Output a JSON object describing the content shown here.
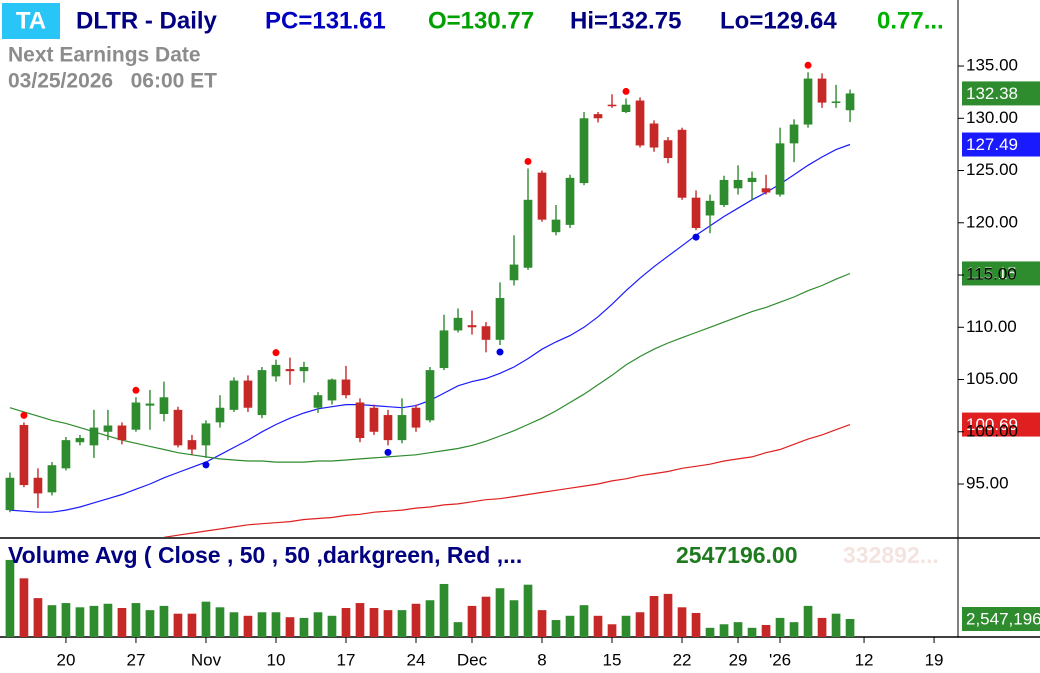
{
  "chart_data": {
    "type": "candlestick",
    "badge": "TA",
    "symbol": "DLTR - Daily",
    "prev_close_text": "PC=131.61",
    "open_text": "O=130.77",
    "high_text": "Hi=132.75",
    "low_text": "Lo=129.64",
    "change_text": "0.77...",
    "earnings_title": "Next Earnings Date",
    "earnings_date": "03/25/2026   06:00 ET",
    "xlim": [
      -0.71,
      67.71
    ],
    "xticks": [
      {
        "value": 4,
        "label": "20"
      },
      {
        "value": 9,
        "label": "27"
      },
      {
        "value": 14,
        "label": "Nov"
      },
      {
        "value": 19,
        "label": "10"
      },
      {
        "value": 24,
        "label": "17"
      },
      {
        "value": 29,
        "label": "24"
      },
      {
        "value": 33,
        "label": "Dec"
      },
      {
        "value": 38,
        "label": "8"
      },
      {
        "value": 43,
        "label": "15"
      },
      {
        "value": 48,
        "label": "22"
      },
      {
        "value": 52,
        "label": "29"
      },
      {
        "value": 55,
        "label": "'26"
      },
      {
        "value": 61,
        "label": "12"
      },
      {
        "value": 66,
        "label": "19"
      }
    ],
    "ylim": [
      89.93,
      141.32
    ],
    "yticks": [
      {
        "value": 95,
        "label": "95.00"
      },
      {
        "value": 100,
        "label": "100.00"
      },
      {
        "value": 105,
        "label": "105.00"
      },
      {
        "value": 110,
        "label": "110.00"
      },
      {
        "value": 115,
        "label": "115.00"
      },
      {
        "value": 120,
        "label": "120.00"
      },
      {
        "value": 125,
        "label": "125.00"
      },
      {
        "value": 130,
        "label": "130.00"
      },
      {
        "value": 135,
        "label": "135.00"
      }
    ],
    "up_color": "#2e8b2e",
    "down_color": "#c62828",
    "open": [
      92.5,
      100.65,
      95.6,
      94.2,
      96.5,
      99.0,
      98.7,
      100.0,
      100.6,
      100.2,
      102.5,
      101.7,
      102.1,
      99.2,
      98.7,
      100.9,
      102.1,
      104.9,
      101.6,
      105.3,
      106.0,
      105.8,
      102.3,
      103.0,
      105.0,
      102.8,
      102.3,
      101.6,
      99.2,
      102.3,
      101.1,
      106.1,
      109.7,
      110.2,
      110.1,
      108.8,
      114.5,
      115.7,
      124.8,
      119.1,
      119.8,
      123.8,
      130.4,
      131.3,
      130.6,
      131.7,
      129.5,
      127.9,
      128.9,
      122.4,
      120.7,
      121.7,
      123.3,
      123.9,
      123.3,
      122.7,
      127.6,
      129.4,
      133.8,
      131.5,
      130.77
    ],
    "high": [
      96.1,
      100.9,
      96.5,
      97.1,
      99.5,
      99.7,
      102.1,
      102.1,
      100.9,
      103.3,
      104.0,
      104.8,
      102.4,
      99.7,
      101.1,
      103.5,
      105.2,
      105.4,
      106.2,
      106.9,
      107.1,
      106.7,
      103.8,
      105.1,
      106.3,
      103.2,
      102.6,
      102.1,
      103.2,
      102.6,
      106.2,
      111.2,
      111.8,
      111.6,
      110.5,
      114.3,
      118.8,
      125.2,
      125.0,
      121.7,
      124.6,
      130.6,
      130.6,
      132.3,
      131.9,
      132.0,
      129.8,
      128.2,
      129.1,
      123.1,
      122.7,
      124.5,
      125.5,
      124.9,
      124.6,
      129.1,
      129.9,
      134.4,
      134.3,
      133.2,
      132.75
    ],
    "low": [
      92.3,
      94.7,
      92.7,
      93.9,
      96.3,
      98.7,
      97.5,
      99.2,
      98.8,
      100.0,
      100.2,
      101.0,
      98.5,
      97.8,
      97.5,
      100.4,
      101.9,
      101.9,
      101.3,
      104.8,
      104.5,
      104.7,
      101.8,
      102.6,
      103.2,
      99.0,
      99.7,
      98.7,
      98.9,
      100.0,
      100.9,
      105.9,
      109.5,
      109.3,
      107.6,
      108.3,
      114.0,
      115.5,
      120.1,
      118.8,
      119.5,
      123.6,
      129.6,
      131.0,
      130.5,
      127.2,
      126.8,
      125.7,
      122.2,
      119.3,
      119.0,
      121.5,
      122.7,
      122.2,
      122.7,
      122.5,
      125.8,
      129.1,
      131.0,
      131.0,
      129.64
    ],
    "close": [
      95.6,
      94.9,
      94.1,
      96.8,
      99.2,
      99.4,
      100.4,
      100.6,
      99.2,
      102.8,
      102.7,
      103.3,
      98.7,
      98.3,
      100.8,
      102.3,
      104.9,
      102.3,
      105.9,
      106.4,
      105.8,
      106.2,
      103.5,
      105.0,
      103.5,
      99.4,
      100.0,
      99.2,
      101.6,
      100.4,
      105.9,
      109.7,
      110.9,
      110.0,
      108.8,
      112.8,
      116.0,
      122.2,
      120.3,
      120.3,
      124.3,
      130.0,
      130.0,
      131.2,
      131.3,
      127.4,
      127.2,
      126.2,
      122.4,
      119.5,
      122.1,
      124.1,
      124.1,
      124.3,
      122.9,
      127.6,
      129.4,
      133.8,
      131.5,
      131.61,
      132.38
    ],
    "last_label": "132.38",
    "last_label_color": "#2e8b2e",
    "swing_highs": [
      1,
      9,
      19,
      37,
      44,
      57
    ],
    "swing_lows": [
      14,
      27,
      35,
      49
    ],
    "swing_high_color": "#ff0000",
    "swing_low_color": "#0000e0",
    "overlays": [
      {
        "color": "#1a1aff",
        "last_label": "127.49",
        "values": [
          92.5,
          92.4,
          92.3,
          92.3,
          92.5,
          92.8,
          93.2,
          93.6,
          94.0,
          94.5,
          95.0,
          95.6,
          96.1,
          96.6,
          97.1,
          97.8,
          98.5,
          99.2,
          100.0,
          100.7,
          101.3,
          101.8,
          102.2,
          102.4,
          102.6,
          102.6,
          102.5,
          102.4,
          102.3,
          102.5,
          103.0,
          103.7,
          104.4,
          104.8,
          105.1,
          105.6,
          106.2,
          107.0,
          107.9,
          108.6,
          109.2,
          110.0,
          111.0,
          112.2,
          113.5,
          114.7,
          115.8,
          116.8,
          117.8,
          118.8,
          119.7,
          120.6,
          121.4,
          122.2,
          122.9,
          123.7,
          124.6,
          125.5,
          126.3,
          127.0,
          127.49
        ]
      },
      {
        "color": "#2e8b2e",
        "last_label": "115.15",
        "values": [
          102.3,
          101.9,
          101.5,
          101.1,
          100.8,
          100.4,
          100.0,
          99.6,
          99.2,
          98.9,
          98.6,
          98.3,
          98.0,
          97.8,
          97.6,
          97.4,
          97.3,
          97.2,
          97.2,
          97.1,
          97.1,
          97.1,
          97.2,
          97.2,
          97.3,
          97.4,
          97.5,
          97.6,
          97.7,
          97.8,
          98.0,
          98.2,
          98.4,
          98.7,
          99.1,
          99.6,
          100.1,
          100.7,
          101.3,
          102.0,
          102.8,
          103.6,
          104.5,
          105.4,
          106.4,
          107.2,
          107.9,
          108.5,
          109.0,
          109.5,
          110.0,
          110.5,
          111.0,
          111.5,
          111.9,
          112.4,
          112.9,
          113.5,
          114.0,
          114.6,
          115.15
        ]
      },
      {
        "color": "#e02020",
        "last_label": "100.69",
        "values": [
          null,
          null,
          null,
          null,
          null,
          null,
          null,
          null,
          null,
          null,
          null,
          89.9,
          90.1,
          90.3,
          90.5,
          90.7,
          90.9,
          91.1,
          91.2,
          91.3,
          91.4,
          91.6,
          91.7,
          91.8,
          92.0,
          92.1,
          92.3,
          92.4,
          92.5,
          92.7,
          92.8,
          93.0,
          93.1,
          93.3,
          93.5,
          93.6,
          93.8,
          94.0,
          94.2,
          94.4,
          94.6,
          94.8,
          95.0,
          95.3,
          95.5,
          95.8,
          96.0,
          96.2,
          96.5,
          96.7,
          96.9,
          97.2,
          97.4,
          97.6,
          98.0,
          98.3,
          98.8,
          99.3,
          99.7,
          100.2,
          100.69
        ]
      }
    ],
    "volume": {
      "title": "Volume Avg ( Close , 50 , 50 ,darkgreen, Red ,...",
      "value_text": "2547196.00",
      "extra_text": "332892...",
      "ylim": [
        0,
        13720000
      ],
      "last_label": "2,547,196",
      "values": [
        10900000,
        8300000,
        5500000,
        4500000,
        4800000,
        4200000,
        4400000,
        4700000,
        4100000,
        4800000,
        3800000,
        4400000,
        3300000,
        3300000,
        5000000,
        4200000,
        3500000,
        3000000,
        3500000,
        3500000,
        2800000,
        2700000,
        3500000,
        3000000,
        4100000,
        4800000,
        4100000,
        3800000,
        3800000,
        4700000,
        5200000,
        7500000,
        2100000,
        4400000,
        5700000,
        6900000,
        5200000,
        7400000,
        3800000,
        2400000,
        3000000,
        4500000,
        3000000,
        1800000,
        3000000,
        3500000,
        5800000,
        6100000,
        4200000,
        3400000,
        1300000,
        1800000,
        2100000,
        1300000,
        1700000,
        2700000,
        2100000,
        4400000,
        2700000,
        3300000,
        2547196
      ]
    }
  }
}
